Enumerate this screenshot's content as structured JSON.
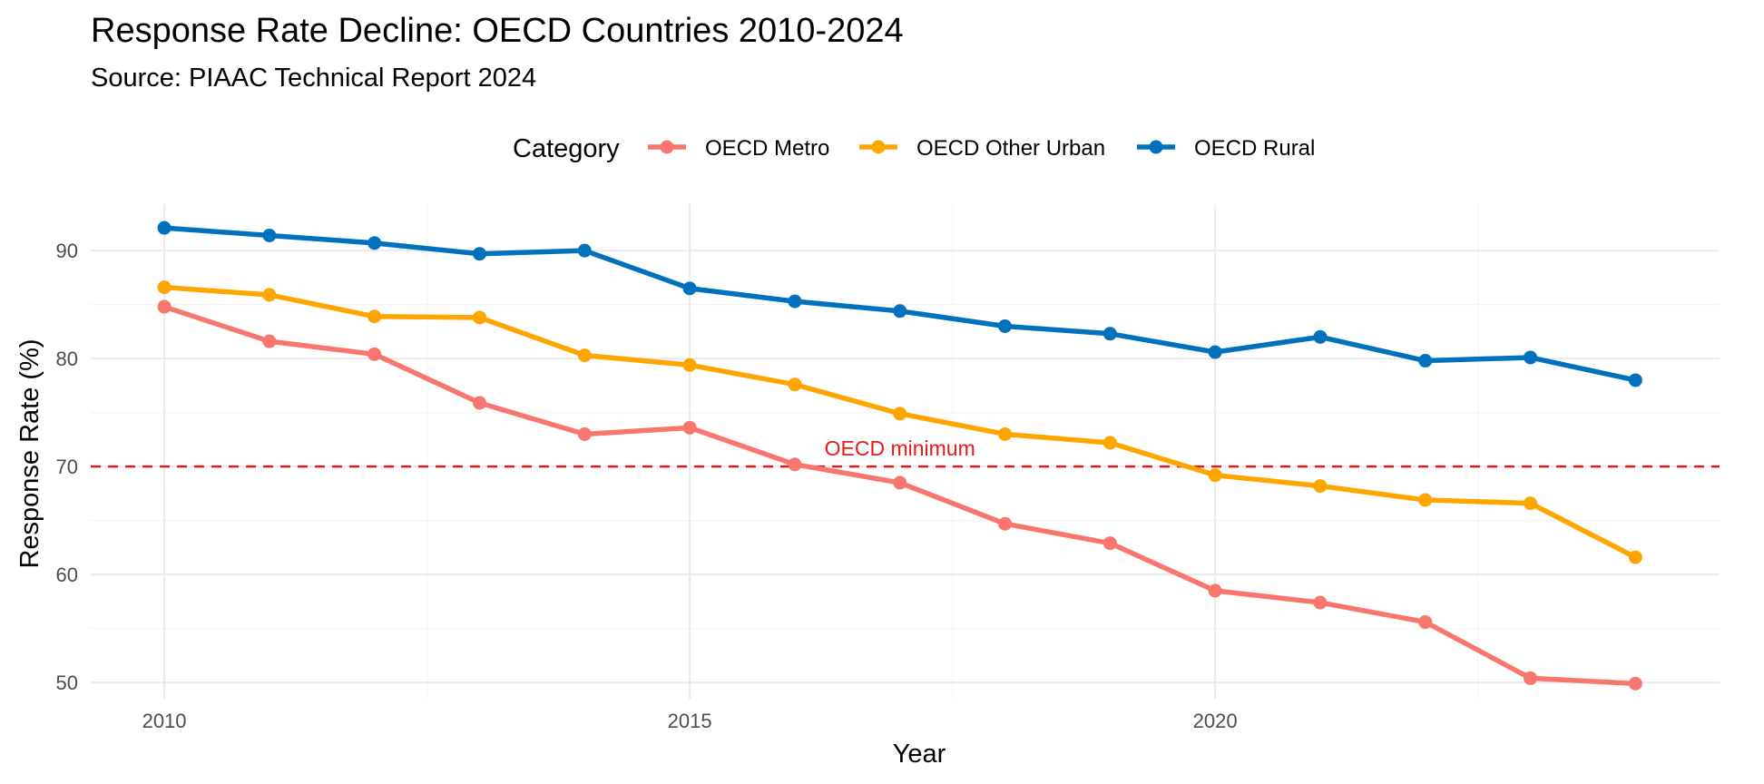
{
  "chart_data": {
    "type": "line",
    "title": "Response Rate Decline: OECD Countries 2010-2024",
    "subtitle": "Source: PIAAC Technical Report 2024",
    "xlabel": "Year",
    "ylabel": "Response Rate (%)",
    "legend_title": "Category",
    "legend_position": "top",
    "grid": true,
    "xlim": [
      2009.3,
      2024.8
    ],
    "ylim": [
      48.5,
      94.3
    ],
    "x_ticks": [
      2010,
      2015,
      2020
    ],
    "y_ticks": [
      50,
      60,
      70,
      80,
      90
    ],
    "x": [
      2010,
      2011,
      2012,
      2013,
      2014,
      2015,
      2016,
      2017,
      2018,
      2019,
      2020,
      2021,
      2022,
      2023,
      2024
    ],
    "series": [
      {
        "name": "OECD Metro",
        "color": "#F8766D",
        "values": [
          84.8,
          81.6,
          80.4,
          75.9,
          73.0,
          73.6,
          70.2,
          68.5,
          64.7,
          62.9,
          58.5,
          57.4,
          55.6,
          50.4,
          49.9
        ]
      },
      {
        "name": "OECD Other Urban",
        "color": "#FFA500",
        "values": [
          86.6,
          85.9,
          83.9,
          83.8,
          80.3,
          79.4,
          77.6,
          74.9,
          73.0,
          72.2,
          69.2,
          68.2,
          66.9,
          66.6,
          61.6
        ]
      },
      {
        "name": "OECD Rural",
        "color": "#0072BD",
        "values": [
          92.1,
          91.4,
          90.7,
          89.7,
          90.0,
          86.5,
          85.3,
          84.4,
          83.0,
          82.3,
          80.6,
          82.0,
          79.8,
          80.1,
          78.0
        ]
      }
    ],
    "reference_line": {
      "y": 70,
      "color": "#E41A1C",
      "style": "dashed",
      "label": "OECD minimum",
      "label_x": 2017
    }
  }
}
